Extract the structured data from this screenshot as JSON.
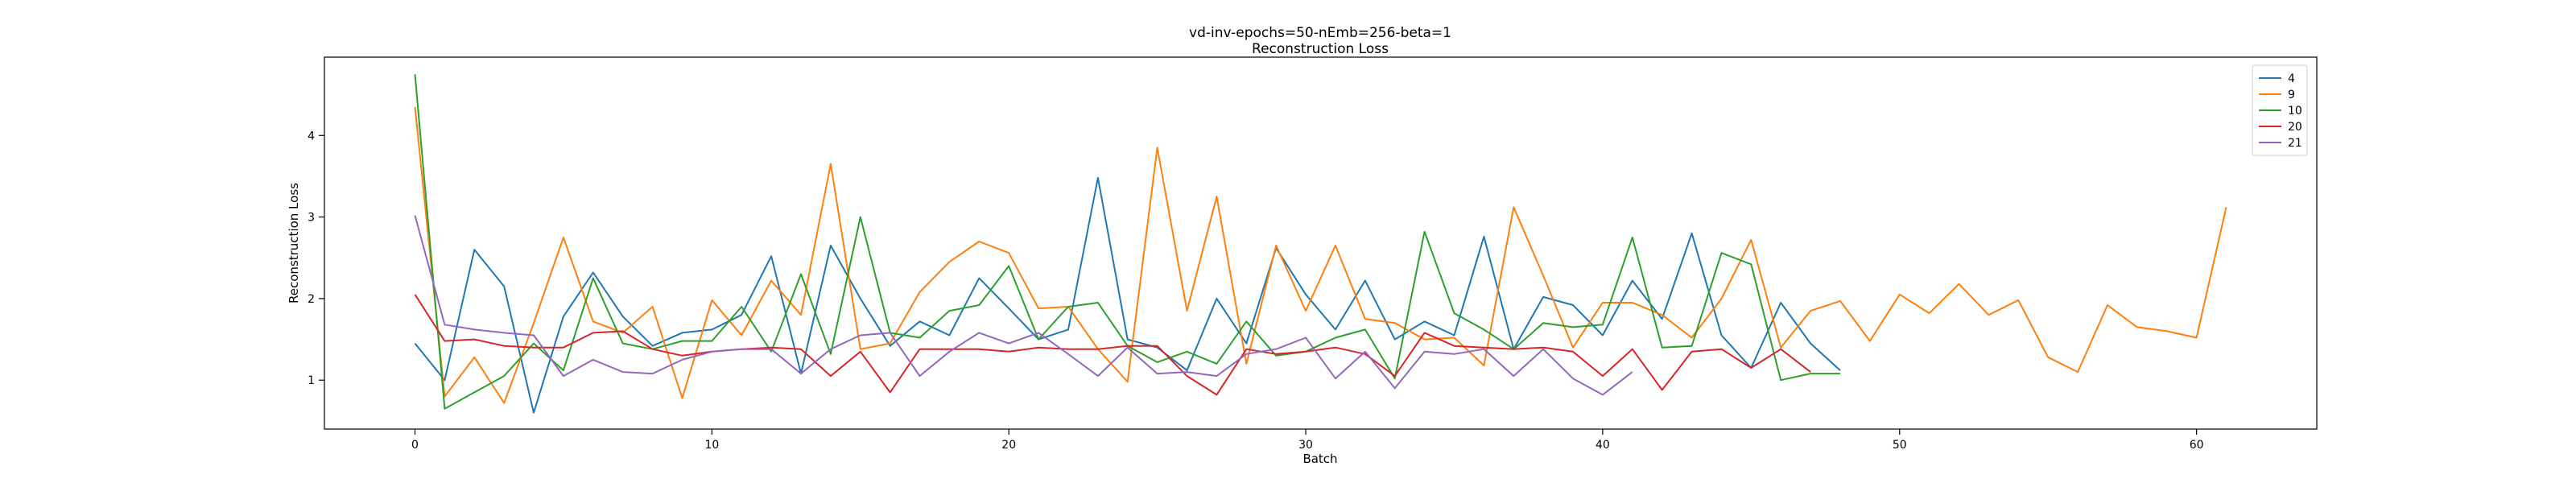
{
  "chart_data": {
    "type": "line",
    "title": "vd-inv-epochs=50-nEmb=256-beta=1",
    "subtitle": "Reconstruction Loss",
    "xlabel": "Batch",
    "ylabel": "Reconstruction Loss",
    "xlim": [
      -3.05,
      64.05
    ],
    "ylim": [
      0.4,
      4.96
    ],
    "xticks": [
      0,
      10,
      20,
      30,
      40,
      50,
      60
    ],
    "yticks": [
      1,
      2,
      3,
      4
    ],
    "grid": false,
    "legend_position": "top-right",
    "series": [
      {
        "name": "4",
        "color": "#1f77b4",
        "values": [
          1.45,
          1.0,
          2.6,
          2.15,
          0.6,
          1.78,
          2.32,
          1.78,
          1.42,
          1.58,
          1.62,
          1.8,
          2.52,
          1.08,
          2.65,
          2.0,
          1.42,
          1.72,
          1.55,
          2.25,
          1.88,
          1.5,
          1.62,
          3.48,
          1.5,
          1.4,
          1.12,
          2.0,
          1.45,
          2.62,
          2.05,
          1.62,
          2.22,
          1.5,
          1.72,
          1.55,
          2.76,
          1.38,
          2.02,
          1.92,
          1.55,
          2.22,
          1.75,
          2.8,
          1.55,
          1.15,
          1.95,
          1.45,
          1.12
        ]
      },
      {
        "name": "9",
        "color": "#ff7f0e",
        "values": [
          4.35,
          0.8,
          1.28,
          0.72,
          1.7,
          2.75,
          1.72,
          1.58,
          1.9,
          0.78,
          1.98,
          1.55,
          2.22,
          1.8,
          3.65,
          1.38,
          1.45,
          2.08,
          2.45,
          2.7,
          2.56,
          1.88,
          1.9,
          1.38,
          0.98,
          3.85,
          1.85,
          3.25,
          1.2,
          2.65,
          1.85,
          2.65,
          1.75,
          1.7,
          1.5,
          1.52,
          1.18,
          3.12,
          2.28,
          1.4,
          1.95,
          1.95,
          1.8,
          1.52,
          2.0,
          2.72,
          1.4,
          1.85,
          1.97,
          1.48,
          2.05,
          1.82,
          2.18,
          1.8,
          1.98,
          1.28,
          1.1,
          1.92,
          1.65,
          1.6,
          1.52,
          3.12
        ]
      },
      {
        "name": "10",
        "color": "#2ca02c",
        "values": [
          4.75,
          0.65,
          0.85,
          1.05,
          1.45,
          1.12,
          2.25,
          1.45,
          1.38,
          1.48,
          1.48,
          1.9,
          1.35,
          2.3,
          1.32,
          3.0,
          1.58,
          1.52,
          1.85,
          1.92,
          2.4,
          1.5,
          1.9,
          1.95,
          1.42,
          1.22,
          1.35,
          1.2,
          1.72,
          1.3,
          1.35,
          1.52,
          1.62,
          1.02,
          2.82,
          1.82,
          1.62,
          1.38,
          1.7,
          1.65,
          1.68,
          2.75,
          1.4,
          1.42,
          2.56,
          2.42,
          1.0,
          1.08,
          1.08
        ]
      },
      {
        "name": "20",
        "color": "#d62728",
        "values": [
          2.05,
          1.48,
          1.5,
          1.42,
          1.4,
          1.4,
          1.58,
          1.6,
          1.38,
          1.3,
          1.35,
          1.38,
          1.4,
          1.38,
          1.05,
          1.35,
          0.85,
          1.38,
          1.38,
          1.38,
          1.35,
          1.4,
          1.38,
          1.38,
          1.42,
          1.42,
          1.05,
          0.82,
          1.38,
          1.32,
          1.35,
          1.4,
          1.32,
          1.05,
          1.58,
          1.42,
          1.4,
          1.38,
          1.4,
          1.35,
          1.05,
          1.38,
          0.88,
          1.35,
          1.38,
          1.15,
          1.38,
          1.1
        ]
      },
      {
        "name": "21",
        "color": "#9467bd",
        "values": [
          3.02,
          1.68,
          1.62,
          1.58,
          1.55,
          1.05,
          1.25,
          1.1,
          1.08,
          1.25,
          1.35,
          1.38,
          1.38,
          1.08,
          1.38,
          1.55,
          1.58,
          1.05,
          1.35,
          1.58,
          1.45,
          1.58,
          1.32,
          1.05,
          1.4,
          1.08,
          1.1,
          1.05,
          1.32,
          1.38,
          1.52,
          1.02,
          1.35,
          0.9,
          1.35,
          1.32,
          1.38,
          1.05,
          1.38,
          1.02,
          0.82,
          1.1
        ]
      }
    ]
  }
}
